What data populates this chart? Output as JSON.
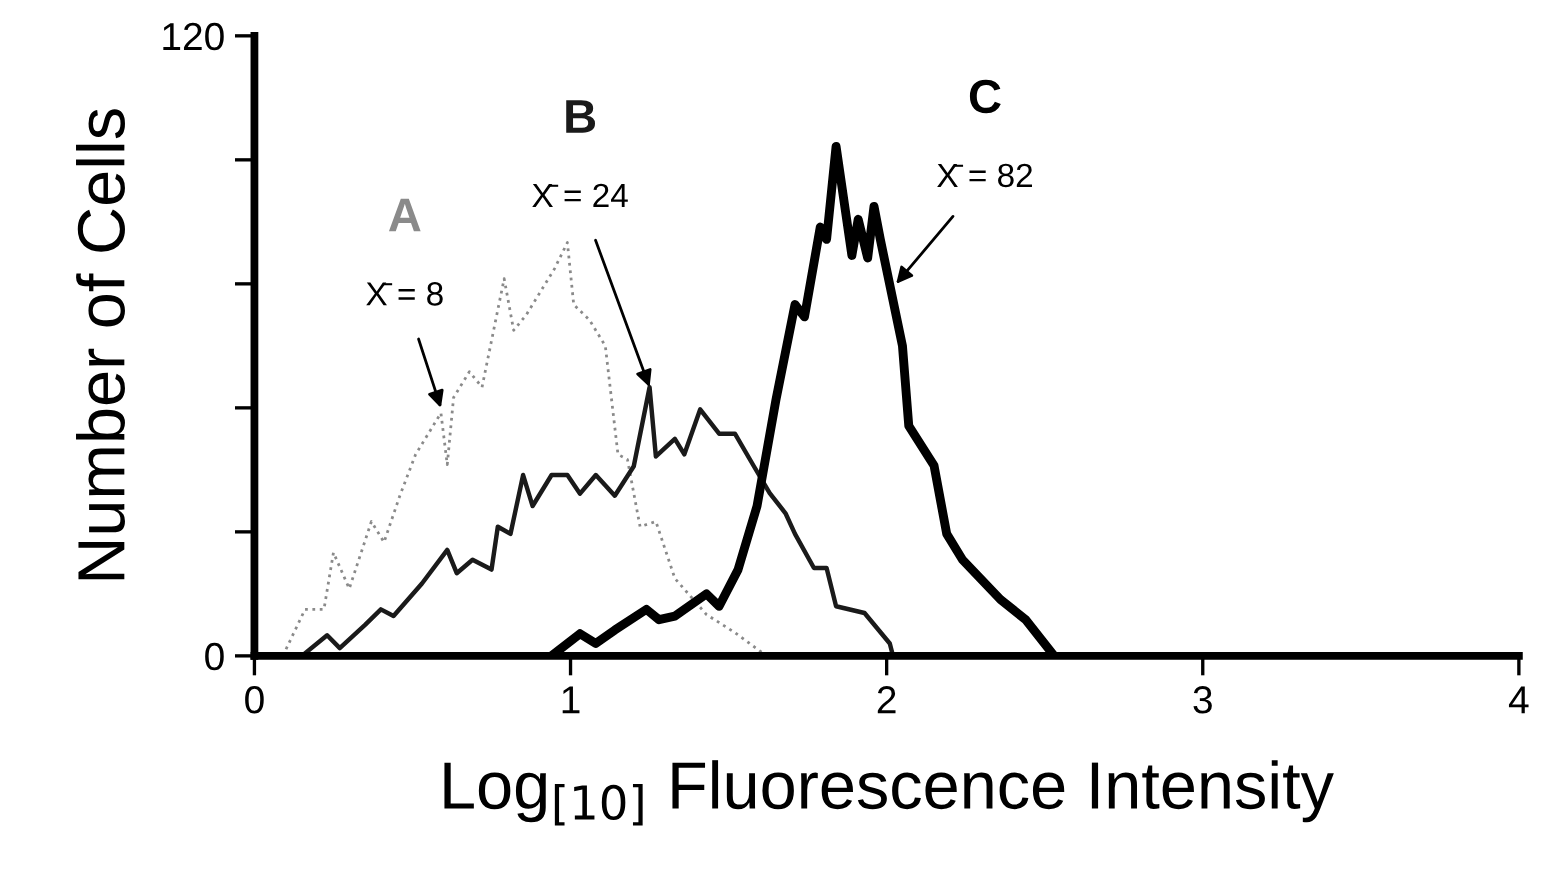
{
  "chart_data": {
    "type": "line",
    "xlabel": "Log$_{[10]}$ Fluorescence Intensity",
    "ylabel": "Number of Cells",
    "xlim": [
      0,
      4
    ],
    "ylim": [
      0,
      120
    ],
    "xticks": [
      0,
      1,
      2,
      3,
      4
    ],
    "yticks": [
      0,
      {
        "value": 24,
        "label": null
      },
      {
        "value": 48,
        "label": null
      },
      {
        "value": 72,
        "label": null
      },
      {
        "value": 96,
        "label": null
      },
      120
    ],
    "grid": false,
    "legend": false,
    "series": [
      {
        "name": "A",
        "color": "#8a8a8a",
        "line_style": "dotted",
        "x": [
          0.09,
          0.16,
          0.22,
          0.25,
          0.3,
          0.37,
          0.41,
          0.46,
          0.51,
          0.59,
          0.61,
          0.63,
          0.68,
          0.72,
          0.79,
          0.82,
          0.86,
          0.95,
          0.99,
          1.01,
          1.06,
          1.11,
          1.15,
          1.18,
          1.22,
          1.27,
          1.33,
          1.43,
          1.52,
          1.62
        ],
        "values": [
          0,
          9,
          9,
          20,
          13,
          26,
          22,
          31,
          39,
          47,
          37,
          50,
          55,
          52,
          73,
          63,
          66,
          75,
          80,
          68,
          65,
          60,
          39,
          38,
          25,
          26,
          15,
          8,
          4.5,
          0
        ]
      },
      {
        "name": "B",
        "color": "#1a1a1a",
        "line_style": "solid",
        "x": [
          0.15,
          0.23,
          0.27,
          0.35,
          0.4,
          0.44,
          0.53,
          0.61,
          0.64,
          0.69,
          0.75,
          0.77,
          0.81,
          0.85,
          0.88,
          0.94,
          0.99,
          1.03,
          1.08,
          1.14,
          1.2,
          1.25,
          1.27,
          1.33,
          1.36,
          1.41,
          1.47,
          1.52,
          1.58,
          1.63,
          1.68,
          1.71,
          1.77,
          1.81,
          1.84,
          1.93,
          2.01,
          2.02
        ],
        "values": [
          0,
          4,
          1.5,
          6,
          9,
          7.7,
          14,
          20.5,
          16,
          18.6,
          16.7,
          25,
          23.6,
          35,
          29,
          35,
          35,
          31.4,
          35,
          31,
          36.7,
          52,
          38.6,
          42,
          39,
          47.7,
          43,
          43,
          36.7,
          31.5,
          27.6,
          23.6,
          17,
          17,
          9.6,
          8.3,
          2.4,
          0
        ]
      },
      {
        "name": "C",
        "color": "#000000",
        "line_style": "solid",
        "x": [
          0.94,
          1.03,
          1.08,
          1.14,
          1.24,
          1.28,
          1.33,
          1.43,
          1.47,
          1.53,
          1.59,
          1.65,
          1.71,
          1.74,
          1.79,
          1.81,
          1.84,
          1.89,
          1.91,
          1.94,
          1.96,
          1.98,
          2.05,
          2.07,
          2.15,
          2.19,
          2.24,
          2.36,
          2.44,
          2.53
        ],
        "values": [
          0,
          4.3,
          2.4,
          5,
          9,
          7,
          7.7,
          12,
          9.6,
          16.7,
          29,
          49.6,
          68,
          65.6,
          83,
          80.6,
          98.6,
          77.5,
          84.5,
          77,
          87,
          80.6,
          60,
          44.5,
          36.8,
          23.6,
          18.6,
          10.9,
          7,
          0
        ]
      }
    ],
    "annotations": [
      {
        "text": "X̄ = 8",
        "x": 0.59,
        "y": 48
      },
      {
        "text": "X̄ = 24",
        "x": 1.25,
        "y": 52
      },
      {
        "text": "X̄ = 82",
        "x": 2.03,
        "y": 72
      }
    ]
  }
}
